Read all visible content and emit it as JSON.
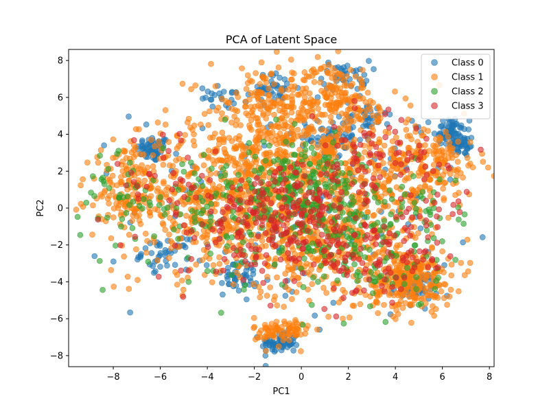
{
  "chart_data": {
    "type": "scatter",
    "title": "PCA of Latent Space",
    "xlabel": "PC1",
    "ylabel": "PC2",
    "xlim": [
      -9.9,
      8.2
    ],
    "ylim": [
      -8.6,
      8.6
    ],
    "xticks": [
      -8,
      -6,
      -4,
      -2,
      0,
      2,
      4,
      6,
      8
    ],
    "yticks": [
      -8,
      -6,
      -4,
      -2,
      0,
      2,
      4,
      6,
      8
    ],
    "xtick_labels": [
      "−8",
      "−6",
      "−4",
      "−2",
      "0",
      "2",
      "4",
      "6",
      "8"
    ],
    "ytick_labels": [
      "−8",
      "−6",
      "−4",
      "−2",
      "0",
      "2",
      "4",
      "6",
      "8"
    ],
    "grid": false,
    "legend_position": "top-right",
    "marker_alpha": 0.6,
    "series": [
      {
        "name": "Class 0",
        "color": "#1f77b4",
        "clusters": [
          {
            "cx": -6.3,
            "cy": 3.2,
            "sx": 0.35,
            "sy": 0.35,
            "n": 60
          },
          {
            "cx": 6.3,
            "cy": 4.2,
            "sx": 0.35,
            "sy": 0.4,
            "n": 60
          },
          {
            "cx": 6.8,
            "cy": 3.4,
            "sx": 0.3,
            "sy": 0.3,
            "n": 40
          },
          {
            "cx": -0.9,
            "cy": -7.3,
            "sx": 0.4,
            "sy": 0.3,
            "n": 70
          },
          {
            "cx": 1.3,
            "cy": 3.8,
            "sx": 0.5,
            "sy": 0.5,
            "n": 60
          },
          {
            "cx": -1.2,
            "cy": 6.5,
            "sx": 0.5,
            "sy": 0.4,
            "n": 40
          },
          {
            "cx": 1.9,
            "cy": 7.2,
            "sx": 0.5,
            "sy": 0.4,
            "n": 40
          },
          {
            "cx": 4.8,
            "cy": -4.3,
            "sx": 0.5,
            "sy": 0.4,
            "n": 50
          },
          {
            "cx": -5.8,
            "cy": -2.5,
            "sx": 0.5,
            "sy": 0.4,
            "n": 40
          },
          {
            "cx": -2.5,
            "cy": -3.8,
            "sx": 0.6,
            "sy": 0.4,
            "n": 40
          },
          {
            "cx": 2.8,
            "cy": 5.0,
            "sx": 0.5,
            "sy": 0.4,
            "n": 30
          },
          {
            "cx": -3.3,
            "cy": 6.0,
            "sx": 0.5,
            "sy": 0.3,
            "n": 25
          },
          {
            "cx": 0.0,
            "cy": 0.0,
            "sx": 3.5,
            "sy": 3.0,
            "n": 150
          }
        ]
      },
      {
        "name": "Class 1",
        "color": "#ff7f0e",
        "clusters": [
          {
            "cx": -3.5,
            "cy": 0.5,
            "sx": 2.2,
            "sy": 2.0,
            "n": 600
          },
          {
            "cx": 0.2,
            "cy": 3.0,
            "sx": 1.6,
            "sy": 1.8,
            "n": 400
          },
          {
            "cx": 1.5,
            "cy": 6.2,
            "sx": 0.7,
            "sy": 0.8,
            "n": 120
          },
          {
            "cx": -0.8,
            "cy": -6.7,
            "sx": 0.6,
            "sy": 0.4,
            "n": 80
          },
          {
            "cx": 4.6,
            "cy": -3.9,
            "sx": 0.9,
            "sy": 0.8,
            "n": 260
          },
          {
            "cx": 5.6,
            "cy": 2.5,
            "sx": 1.0,
            "sy": 0.9,
            "n": 150
          },
          {
            "cx": 1.0,
            "cy": -2.0,
            "sx": 2.0,
            "sy": 1.6,
            "n": 350
          },
          {
            "cx": -7.2,
            "cy": 1.2,
            "sx": 1.0,
            "sy": 1.2,
            "n": 120
          },
          {
            "cx": 3.5,
            "cy": 1.0,
            "sx": 1.3,
            "sy": 2.0,
            "n": 200
          },
          {
            "cx": -1.5,
            "cy": 5.5,
            "sx": 1.2,
            "sy": 1.0,
            "n": 150
          }
        ]
      },
      {
        "name": "Class 2",
        "color": "#2ca02c",
        "clusters": [
          {
            "cx": 0.0,
            "cy": 1.2,
            "sx": 1.2,
            "sy": 1.2,
            "n": 140
          },
          {
            "cx": -2.5,
            "cy": 0.0,
            "sx": 2.5,
            "sy": 1.8,
            "n": 180
          },
          {
            "cx": 2.5,
            "cy": -1.0,
            "sx": 1.6,
            "sy": 1.6,
            "n": 120
          },
          {
            "cx": -7.5,
            "cy": 0.5,
            "sx": 1.0,
            "sy": 1.4,
            "n": 40
          },
          {
            "cx": 3.5,
            "cy": -3.5,
            "sx": 1.2,
            "sy": 1.0,
            "n": 40
          },
          {
            "cx": 5.0,
            "cy": 0.0,
            "sx": 1.0,
            "sy": 1.0,
            "n": 30
          }
        ]
      },
      {
        "name": "Class 3",
        "color": "#d62728",
        "clusters": [
          {
            "cx": 0.0,
            "cy": -0.5,
            "sx": 1.5,
            "sy": 1.3,
            "n": 160
          },
          {
            "cx": 3.2,
            "cy": 2.5,
            "sx": 1.5,
            "sy": 1.2,
            "n": 90
          },
          {
            "cx": -2.5,
            "cy": -1.0,
            "sx": 2.0,
            "sy": 1.5,
            "n": 120
          },
          {
            "cx": 3.2,
            "cy": -3.2,
            "sx": 1.3,
            "sy": 1.2,
            "n": 80
          },
          {
            "cx": 5.2,
            "cy": -1.0,
            "sx": 1.0,
            "sy": 1.0,
            "n": 30
          },
          {
            "cx": -6.0,
            "cy": 2.0,
            "sx": 1.2,
            "sy": 1.2,
            "n": 25
          }
        ]
      }
    ]
  }
}
